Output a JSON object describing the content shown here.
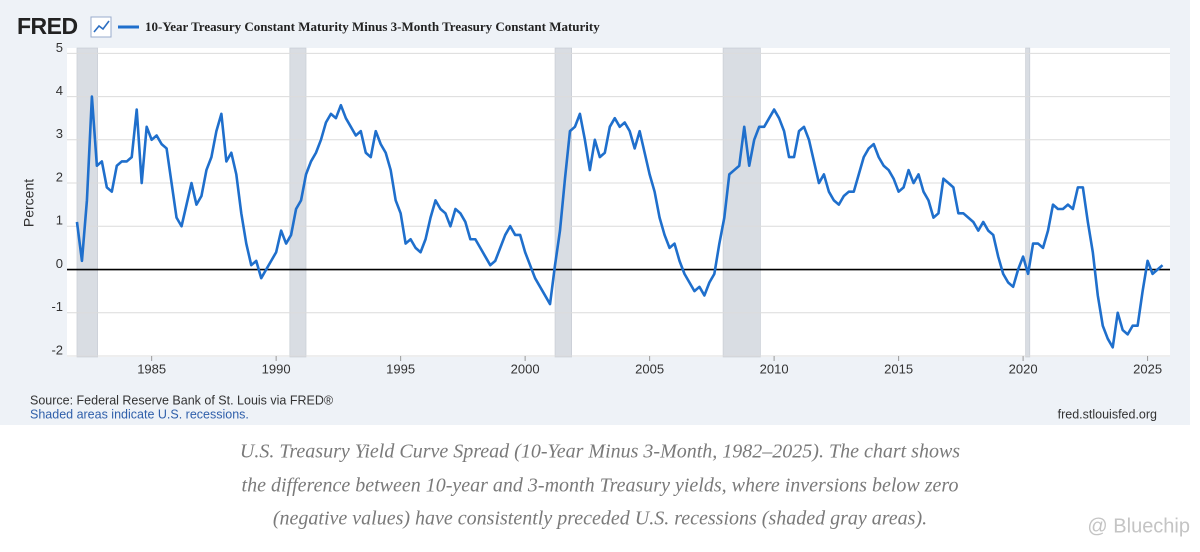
{
  "chart_data": {
    "type": "line",
    "logo": "FRED",
    "ylabel": "Percent",
    "source": "Source: Federal Reserve Bank of St. Louis via FRED®",
    "note": "Shaded areas indicate U.S. recessions.",
    "site": "fred.stlouisfed.org",
    "caption": [
      "U.S. Treasury Yield Curve Spread (10-Year Minus 3-Month, 1982–2025). The chart shows",
      "the difference between 10-year and 3-month Treasury yields, where inversions below zero",
      "(negative values) have consistently preceded U.S. recessions (shaded gray areas)."
    ],
    "watermark": "@ Bluechip",
    "xlim": [
      1981.6,
      2025.9
    ],
    "xticks": [
      1985,
      1990,
      1995,
      2000,
      2005,
      2010,
      2015,
      2020,
      2025
    ],
    "ylim": [
      -2,
      5.1
    ],
    "yticks": [
      5,
      4,
      3,
      2,
      1,
      0,
      -1,
      -2
    ],
    "grid": true,
    "hline": 0,
    "recession_color": "#d9dde3",
    "recessions": [
      {
        "start": 1982.0,
        "end": 1982.83
      },
      {
        "start": 1990.55,
        "end": 1991.2
      },
      {
        "start": 2001.2,
        "end": 2001.87
      },
      {
        "start": 2007.95,
        "end": 2009.45
      },
      {
        "start": 2020.1,
        "end": 2020.27
      }
    ],
    "x": [
      1982,
      1982.2,
      1982.4,
      1982.6,
      1982.8,
      1983,
      1983.2,
      1983.4,
      1983.6,
      1983.8,
      1984,
      1984.2,
      1984.4,
      1984.6,
      1984.8,
      1985,
      1985.2,
      1985.4,
      1985.6,
      1985.8,
      1986,
      1986.2,
      1986.4,
      1986.6,
      1986.8,
      1987,
      1987.2,
      1987.4,
      1987.6,
      1987.8,
      1988,
      1988.2,
      1988.4,
      1988.6,
      1988.8,
      1989,
      1989.2,
      1989.4,
      1989.6,
      1989.8,
      1990,
      1990.2,
      1990.4,
      1990.6,
      1990.8,
      1991,
      1991.2,
      1991.4,
      1991.6,
      1991.8,
      1992,
      1992.2,
      1992.4,
      1992.6,
      1992.8,
      1993,
      1993.2,
      1993.4,
      1993.6,
      1993.8,
      1994,
      1994.2,
      1994.4,
      1994.6,
      1994.8,
      1995,
      1995.2,
      1995.4,
      1995.6,
      1995.8,
      1996,
      1996.2,
      1996.4,
      1996.6,
      1996.8,
      1997,
      1997.2,
      1997.4,
      1997.6,
      1997.8,
      1998,
      1998.2,
      1998.4,
      1998.6,
      1998.8,
      1999,
      1999.2,
      1999.4,
      1999.6,
      1999.8,
      2000,
      2000.2,
      2000.4,
      2000.6,
      2000.8,
      2001,
      2001.2,
      2001.4,
      2001.6,
      2001.8,
      2002,
      2002.2,
      2002.4,
      2002.6,
      2002.8,
      2003,
      2003.2,
      2003.4,
      2003.6,
      2003.8,
      2004,
      2004.2,
      2004.4,
      2004.6,
      2004.8,
      2005,
      2005.2,
      2005.4,
      2005.6,
      2005.8,
      2006,
      2006.2,
      2006.4,
      2006.6,
      2006.8,
      2007,
      2007.2,
      2007.4,
      2007.6,
      2007.8,
      2008,
      2008.2,
      2008.4,
      2008.6,
      2008.8,
      2009,
      2009.2,
      2009.4,
      2009.6,
      2009.8,
      2010,
      2010.2,
      2010.4,
      2010.6,
      2010.8,
      2011,
      2011.2,
      2011.4,
      2011.6,
      2011.8,
      2012,
      2012.2,
      2012.4,
      2012.6,
      2012.8,
      2013,
      2013.2,
      2013.4,
      2013.6,
      2013.8,
      2014,
      2014.2,
      2014.4,
      2014.6,
      2014.8,
      2015,
      2015.2,
      2015.4,
      2015.6,
      2015.8,
      2016,
      2016.2,
      2016.4,
      2016.6,
      2016.8,
      2017,
      2017.2,
      2017.4,
      2017.6,
      2017.8,
      2018,
      2018.2,
      2018.4,
      2018.6,
      2018.8,
      2019,
      2019.2,
      2019.4,
      2019.6,
      2019.8,
      2020,
      2020.2,
      2020.4,
      2020.6,
      2020.8,
      2021,
      2021.2,
      2021.4,
      2021.6,
      2021.8,
      2022,
      2022.2,
      2022.4,
      2022.6,
      2022.8,
      2023,
      2023.2,
      2023.4,
      2023.6,
      2023.8,
      2024,
      2024.2,
      2024.4,
      2024.6,
      2024.8,
      2025,
      2025.2,
      2025.4,
      2025.6
    ],
    "series": [
      {
        "name": "10-Year Treasury Constant Maturity Minus 3-Month Treasury Constant Maturity",
        "color": "#1f6fcc",
        "values": [
          1.1,
          0.2,
          1.6,
          4.0,
          2.4,
          2.5,
          1.9,
          1.8,
          2.4,
          2.5,
          2.5,
          2.6,
          3.7,
          2.0,
          3.3,
          3.0,
          3.1,
          2.9,
          2.8,
          2.0,
          1.2,
          1.0,
          1.5,
          2.0,
          1.5,
          1.7,
          2.3,
          2.6,
          3.2,
          3.6,
          2.5,
          2.7,
          2.2,
          1.3,
          0.6,
          0.1,
          0.2,
          -0.2,
          0.0,
          0.2,
          0.4,
          0.9,
          0.6,
          0.8,
          1.4,
          1.6,
          2.2,
          2.5,
          2.7,
          3.0,
          3.4,
          3.6,
          3.5,
          3.8,
          3.5,
          3.3,
          3.1,
          3.2,
          2.7,
          2.6,
          3.2,
          2.9,
          2.7,
          2.3,
          1.6,
          1.3,
          0.6,
          0.7,
          0.5,
          0.4,
          0.7,
          1.2,
          1.6,
          1.4,
          1.3,
          1.0,
          1.4,
          1.3,
          1.1,
          0.7,
          0.7,
          0.5,
          0.3,
          0.1,
          0.2,
          0.5,
          0.8,
          1.0,
          0.8,
          0.8,
          0.4,
          0.1,
          -0.2,
          -0.4,
          -0.6,
          -0.8,
          0.1,
          0.9,
          2.1,
          3.2,
          3.3,
          3.6,
          3.0,
          2.3,
          3.0,
          2.6,
          2.7,
          3.3,
          3.5,
          3.3,
          3.4,
          3.2,
          2.8,
          3.2,
          2.7,
          2.2,
          1.8,
          1.2,
          0.8,
          0.5,
          0.6,
          0.2,
          -0.1,
          -0.3,
          -0.5,
          -0.4,
          -0.6,
          -0.3,
          -0.1,
          0.6,
          1.2,
          2.2,
          2.3,
          2.4,
          3.3,
          2.4,
          3.0,
          3.3,
          3.3,
          3.5,
          3.7,
          3.5,
          3.2,
          2.6,
          2.6,
          3.2,
          3.3,
          3.0,
          2.5,
          2.0,
          2.2,
          1.8,
          1.6,
          1.5,
          1.7,
          1.8,
          1.8,
          2.2,
          2.6,
          2.8,
          2.9,
          2.6,
          2.4,
          2.3,
          2.1,
          1.8,
          1.9,
          2.3,
          2.0,
          2.2,
          1.8,
          1.6,
          1.2,
          1.3,
          2.1,
          2.0,
          1.9,
          1.3,
          1.3,
          1.2,
          1.1,
          0.9,
          1.1,
          0.9,
          0.8,
          0.3,
          -0.1,
          -0.3,
          -0.4,
          0.0,
          0.3,
          -0.1,
          0.6,
          0.6,
          0.5,
          0.9,
          1.5,
          1.4,
          1.4,
          1.5,
          1.4,
          1.9,
          1.9,
          1.1,
          0.4,
          -0.6,
          -1.3,
          -1.6,
          -1.8,
          -1.0,
          -1.4,
          -1.5,
          -1.3,
          -1.3,
          -0.5,
          0.2,
          -0.1,
          0.0,
          0.1
        ]
      }
    ]
  }
}
